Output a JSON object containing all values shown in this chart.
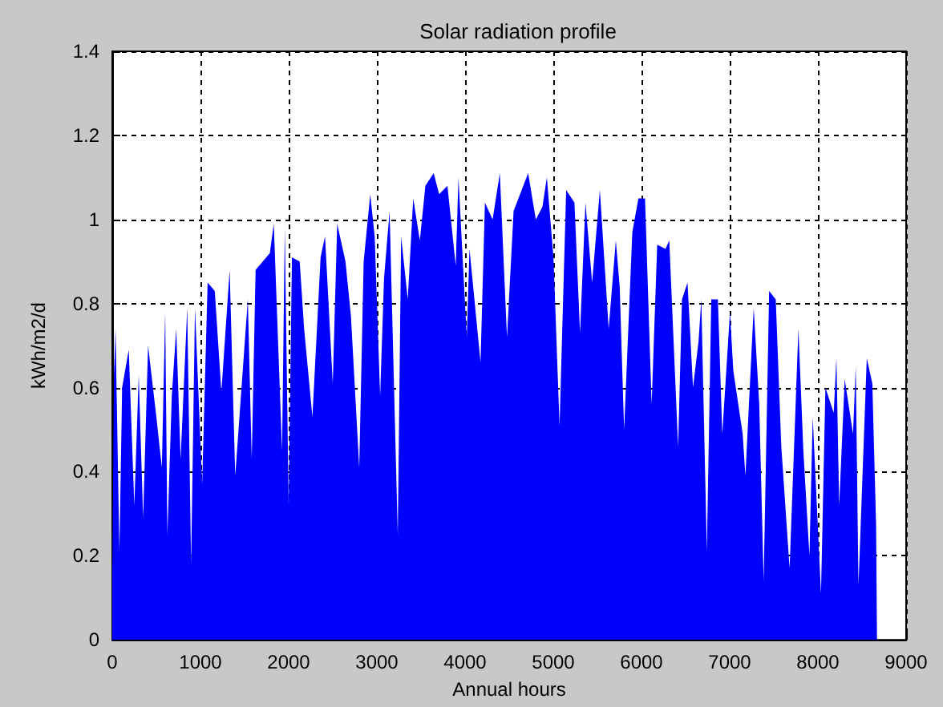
{
  "chart_data": {
    "type": "area",
    "title": "Solar radiation profile",
    "xlabel": "Annual hours",
    "ylabel": "kWh/m2/d",
    "x": [
      0,
      19,
      37,
      81,
      112,
      187,
      250,
      300,
      350,
      406,
      500,
      562,
      600,
      625,
      675,
      725,
      775,
      850,
      894,
      938,
      1019,
      1081,
      1162,
      1237,
      1331,
      1394,
      1537,
      1581,
      1625,
      1706,
      1787,
      1831,
      1925,
      1956,
      2000,
      2037,
      2125,
      2175,
      2269,
      2362,
      2412,
      2500,
      2550,
      2644,
      2706,
      2800,
      2850,
      2925,
      2975,
      3037,
      3081,
      3144,
      3237,
      3275,
      3350,
      3412,
      3487,
      3550,
      3644,
      3706,
      3800,
      3894,
      3925,
      4019,
      4050,
      4175,
      4225,
      4312,
      4394,
      4475,
      4550,
      4715,
      4802,
      4877,
      4927,
      5002,
      5071,
      5146,
      5240,
      5303,
      5365,
      5440,
      5528,
      5628,
      5709,
      5753,
      5803,
      5896,
      5965,
      6040,
      6115,
      6178,
      6272,
      6315,
      6415,
      6459,
      6522,
      6584,
      6647,
      6678,
      6741,
      6791,
      6866,
      6916,
      7003,
      7041,
      7147,
      7178,
      7272,
      7335,
      7385,
      7447,
      7522,
      7585,
      7679,
      7779,
      7835,
      7904,
      7941,
      8035,
      8085,
      8179,
      8210,
      8241,
      8304,
      8398,
      8429,
      8460,
      8554,
      8617,
      8660,
      8670
    ],
    "series": [
      {
        "color": "#0000ff",
        "values": [
          0.13,
          0.63,
          0.74,
          0.21,
          0.6,
          0.69,
          0.32,
          0.63,
          0.29,
          0.7,
          0.53,
          0.41,
          0.78,
          0.25,
          0.58,
          0.74,
          0.43,
          0.79,
          0.18,
          0.79,
          0.37,
          0.85,
          0.83,
          0.59,
          0.88,
          0.39,
          0.81,
          0.43,
          0.88,
          0.9,
          0.92,
          0.99,
          0.45,
          0.98,
          0.32,
          0.91,
          0.9,
          0.74,
          0.53,
          0.91,
          0.96,
          0.61,
          0.99,
          0.9,
          0.77,
          0.41,
          0.9,
          1.06,
          0.96,
          0.58,
          0.86,
          1.02,
          0.25,
          0.96,
          0.81,
          1.05,
          0.95,
          1.08,
          1.11,
          1.06,
          1.08,
          0.89,
          1.1,
          0.72,
          0.93,
          0.66,
          1.04,
          1.0,
          1.11,
          0.72,
          1.02,
          1.11,
          1.0,
          1.03,
          1.1,
          0.91,
          0.51,
          1.07,
          1.04,
          0.73,
          1.04,
          0.85,
          1.07,
          0.74,
          0.95,
          0.84,
          0.5,
          0.97,
          1.05,
          1.05,
          0.56,
          0.94,
          0.93,
          0.95,
          0.46,
          0.81,
          0.85,
          0.6,
          0.71,
          0.81,
          0.21,
          0.81,
          0.81,
          0.49,
          0.78,
          0.64,
          0.49,
          0.39,
          0.79,
          0.56,
          0.14,
          0.83,
          0.81,
          0.46,
          0.17,
          0.74,
          0.45,
          0.2,
          0.53,
          0.11,
          0.6,
          0.54,
          0.67,
          0.32,
          0.62,
          0.49,
          0.65,
          0.13,
          0.67,
          0.61,
          0.27,
          0
        ]
      }
    ],
    "xlim": [
      0,
      9000
    ],
    "xticks": [
      0,
      1000,
      2000,
      3000,
      4000,
      5000,
      6000,
      7000,
      8000,
      9000
    ],
    "ylim": [
      0,
      1.4
    ],
    "yticks": [
      0,
      0.2,
      0.4,
      0.6,
      0.8,
      1,
      1.2,
      1.4
    ],
    "grid": true,
    "marker": "none"
  }
}
